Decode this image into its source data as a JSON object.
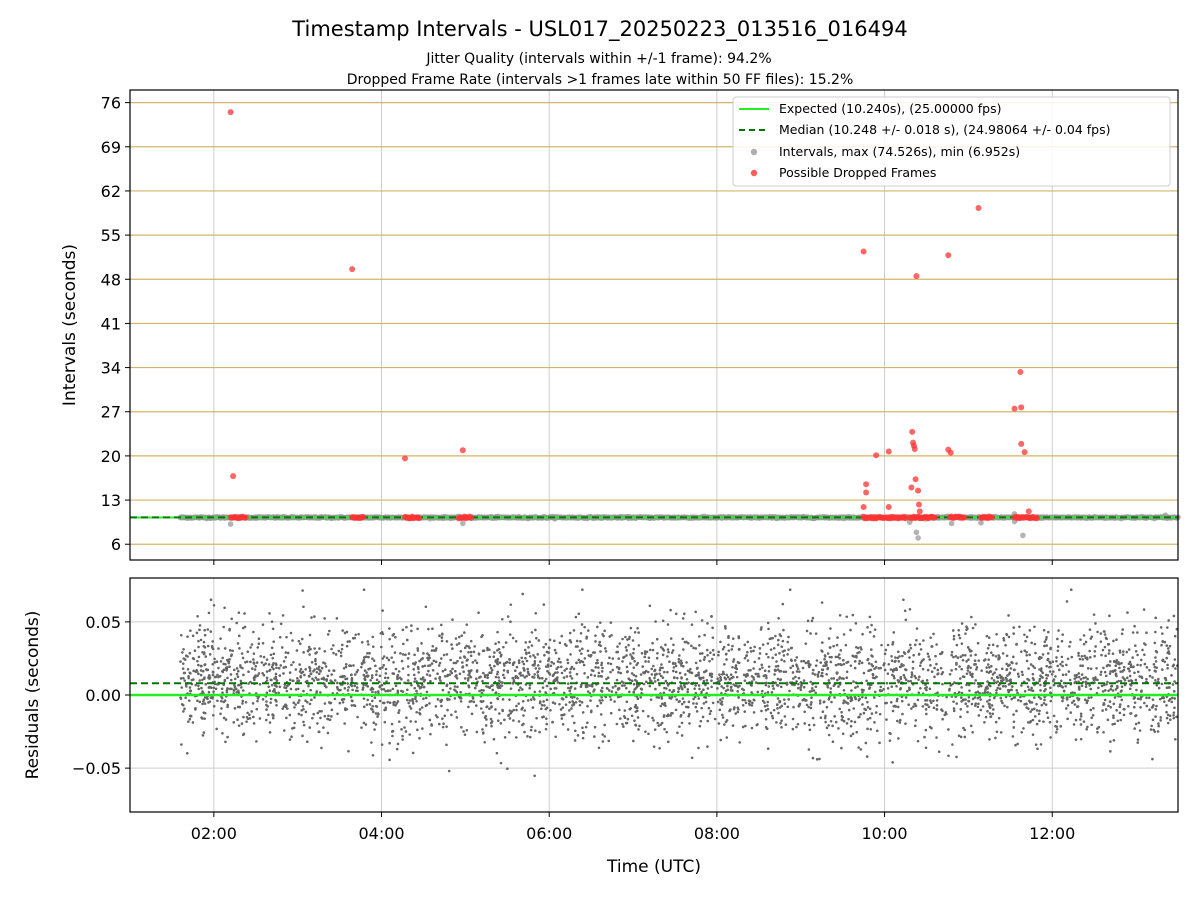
{
  "title": "Timestamp Intervals - USL017_20250223_013516_016494",
  "subtitle_1": "Jitter Quality (intervals within +/-1 frame): 94.2%",
  "subtitle_2": "Dropped Frame Rate (intervals >1 frames late within 50 FF files): 15.2%",
  "xlabel": "Time (UTC)",
  "colors": {
    "expected": "#22ee22",
    "median": "#007700",
    "intervals": "#999999",
    "dropped": "#ff3333",
    "residuals": "#666666",
    "hgrid_top": "#d4b46a",
    "grid": "#cccccc"
  },
  "chart_data": [
    {
      "type": "scatter",
      "ylabel": "Intervals (seconds)",
      "xlim": [
        1.0,
        13.5
      ],
      "ylim": [
        3.5,
        78
      ],
      "yticks": [
        6,
        13,
        20,
        27,
        34,
        41,
        48,
        55,
        62,
        69,
        76
      ],
      "ytick_labels": [
        "6",
        "13",
        "20",
        "27",
        "34",
        "41",
        "48",
        "55",
        "62",
        "69",
        "76"
      ],
      "xticks": [
        2,
        4,
        6,
        8,
        10,
        12
      ],
      "xtick_labels": [
        "02:00",
        "04:00",
        "06:00",
        "08:00",
        "10:00",
        "12:00"
      ],
      "grid": true,
      "legend_position": "top-right",
      "legend": [
        "Expected (10.240s), (25.00000 fps)",
        "Median (10.248 +/- 0.018 s), (24.98064 +/- 0.04 fps)",
        "Intervals, max (74.526s), min (6.952s)",
        "Possible Dropped Frames"
      ],
      "expected_y": 10.24,
      "median_y": 10.248,
      "intervals_x_range": [
        1.6,
        13.5
      ],
      "intervals_baseline": 10.24,
      "intervals_extra": [
        {
          "x": 2.2,
          "y": 9.2
        },
        {
          "x": 4.97,
          "y": 9.3
        },
        {
          "x": 10.38,
          "y": 7.9
        },
        {
          "x": 10.4,
          "y": 7.0
        },
        {
          "x": 10.8,
          "y": 9.3
        },
        {
          "x": 11.15,
          "y": 9.4
        },
        {
          "x": 11.55,
          "y": 10.8
        },
        {
          "x": 11.55,
          "y": 9.6
        },
        {
          "x": 11.65,
          "y": 7.4
        },
        {
          "x": 13.35,
          "y": 10.6
        },
        {
          "x": 10.3,
          "y": 9.5
        }
      ],
      "dropped_clusters": [
        [
          2.2,
          2.38
        ],
        [
          3.65,
          3.78
        ],
        [
          4.28,
          4.45
        ],
        [
          4.92,
          5.07
        ],
        [
          9.75,
          10.25
        ],
        [
          10.3,
          10.6
        ],
        [
          10.78,
          10.95
        ],
        [
          11.15,
          11.28
        ],
        [
          11.55,
          11.82
        ]
      ],
      "dropped_points": [
        {
          "x": 2.2,
          "y": 74.5
        },
        {
          "x": 2.23,
          "y": 16.8
        },
        {
          "x": 3.65,
          "y": 49.6
        },
        {
          "x": 4.28,
          "y": 19.6
        },
        {
          "x": 4.97,
          "y": 20.9
        },
        {
          "x": 9.75,
          "y": 52.4
        },
        {
          "x": 9.75,
          "y": 11.9
        },
        {
          "x": 9.78,
          "y": 14.2
        },
        {
          "x": 9.78,
          "y": 15.5
        },
        {
          "x": 9.9,
          "y": 20.1
        },
        {
          "x": 10.05,
          "y": 20.7
        },
        {
          "x": 10.05,
          "y": 11.9
        },
        {
          "x": 10.32,
          "y": 15.0
        },
        {
          "x": 10.33,
          "y": 23.8
        },
        {
          "x": 10.34,
          "y": 22.1
        },
        {
          "x": 10.35,
          "y": 21.6
        },
        {
          "x": 10.36,
          "y": 21.1
        },
        {
          "x": 10.37,
          "y": 16.3
        },
        {
          "x": 10.38,
          "y": 48.5
        },
        {
          "x": 10.4,
          "y": 14.5
        },
        {
          "x": 10.41,
          "y": 12.3
        },
        {
          "x": 10.42,
          "y": 11.2
        },
        {
          "x": 10.76,
          "y": 51.8
        },
        {
          "x": 10.76,
          "y": 21.0
        },
        {
          "x": 10.79,
          "y": 20.5
        },
        {
          "x": 11.12,
          "y": 59.3
        },
        {
          "x": 11.55,
          "y": 27.5
        },
        {
          "x": 11.62,
          "y": 33.3
        },
        {
          "x": 11.63,
          "y": 27.7
        },
        {
          "x": 11.63,
          "y": 21.9
        },
        {
          "x": 11.67,
          "y": 20.6
        },
        {
          "x": 11.72,
          "y": 11.2
        }
      ]
    },
    {
      "type": "scatter",
      "ylabel": "Residuals (seconds)",
      "xlim": [
        1.0,
        13.5
      ],
      "ylim": [
        -0.08,
        0.08
      ],
      "yticks": [
        -0.05,
        0.0,
        0.05
      ],
      "ytick_labels": [
        "−0.05",
        "0.00",
        "0.05"
      ],
      "xticks": [
        2,
        4,
        6,
        8,
        10,
        12
      ],
      "xtick_labels": [
        "02:00",
        "04:00",
        "06:00",
        "08:00",
        "10:00",
        "12:00"
      ],
      "grid": true,
      "expected_residual": 0.0,
      "median_residual": 0.008,
      "residuals_x_range": [
        1.6,
        13.5
      ],
      "residuals_sigma": 0.018
    }
  ]
}
